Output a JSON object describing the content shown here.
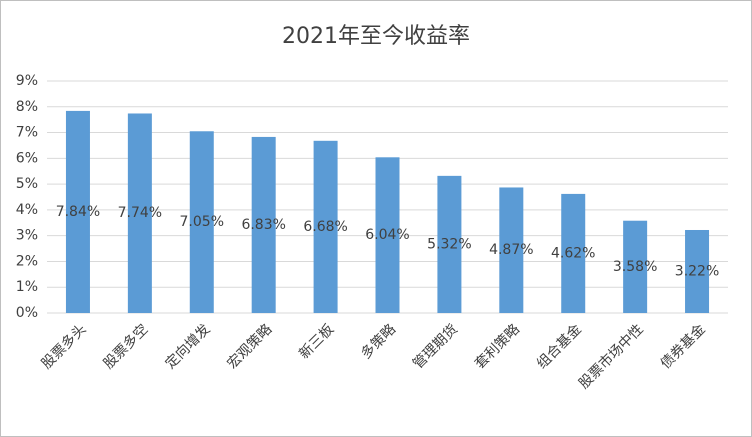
{
  "chart_data": {
    "type": "bar",
    "title": "2021年至今收益率",
    "categories": [
      "股票多头",
      "股票多空",
      "定向增发",
      "宏观策略",
      "新三板",
      "多策略",
      "管理期货",
      "套利策略",
      "组合基金",
      "股票市场中性",
      "债券基金"
    ],
    "values": [
      7.84,
      7.74,
      7.05,
      6.83,
      6.68,
      6.04,
      5.32,
      4.87,
      4.62,
      3.58,
      3.22
    ],
    "value_labels": [
      "7.84%",
      "7.74%",
      "7.05%",
      "6.83%",
      "6.68%",
      "6.04%",
      "5.32%",
      "4.87%",
      "4.62%",
      "3.58%",
      "3.22%"
    ],
    "color": "#5b9bd5",
    "ylim": [
      0,
      9
    ],
    "yticks": [
      {
        "value": 0,
        "label": "0%"
      },
      {
        "value": 1,
        "label": "1%"
      },
      {
        "value": 2,
        "label": "2%"
      },
      {
        "value": 3,
        "label": "3%"
      },
      {
        "value": 4,
        "label": "4%"
      },
      {
        "value": 5,
        "label": "5%"
      },
      {
        "value": 6,
        "label": "6%"
      },
      {
        "value": 7,
        "label": "7%"
      },
      {
        "value": 8,
        "label": "8%"
      },
      {
        "value": 9,
        "label": "9%"
      }
    ],
    "grid": true
  }
}
